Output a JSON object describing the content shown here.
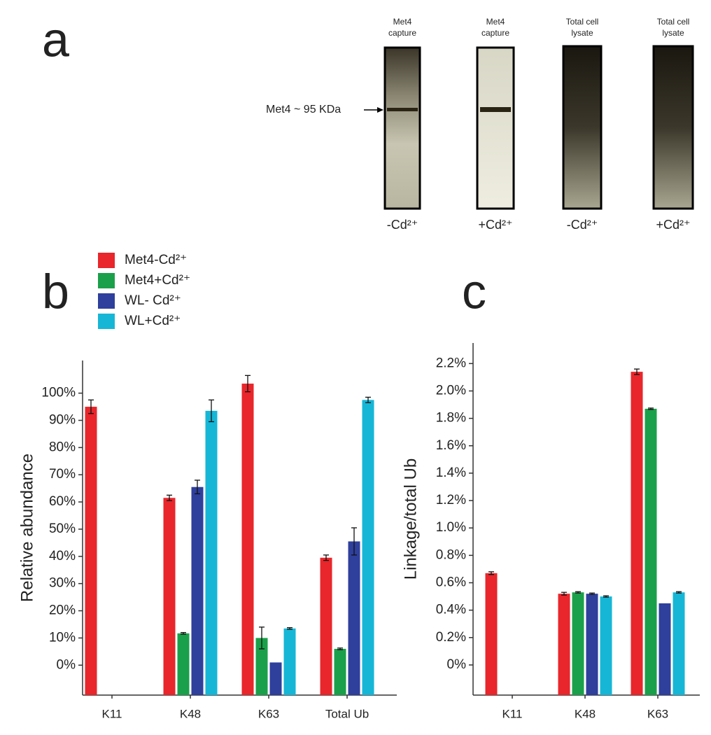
{
  "blot": {
    "panel": "a",
    "marker": "Met4 ~ 95 KDa",
    "lanes": [
      {
        "title": [
          "Met4",
          "capture"
        ],
        "condition": "-Cd²⁺"
      },
      {
        "title": [
          "Met4",
          "capture"
        ],
        "condition": "+Cd²⁺"
      },
      {
        "title": [
          "Total cell",
          "lysate"
        ],
        "condition": "-Cd²⁺"
      },
      {
        "title": [
          "Total cell",
          "lysate"
        ],
        "condition": "+Cd²⁺"
      }
    ]
  },
  "chart_data": [
    {
      "type": "bar",
      "panel": "b",
      "ylabel": "Relative abundance",
      "categories": [
        "K11",
        "K48",
        "K63",
        "Total Ub"
      ],
      "legend": "top-left",
      "series": [
        {
          "name": "Met4-Cd²⁺",
          "color": "#e8262b",
          "values": [
            95,
            61.5,
            103.5,
            39.5
          ],
          "errors": [
            2.5,
            1,
            3,
            1
          ]
        },
        {
          "name": "Met4+Cd²⁺",
          "color": "#1aa04a",
          "values": [
            null,
            11.7,
            10,
            6
          ],
          "errors": [
            null,
            0.3,
            4,
            0.3
          ]
        },
        {
          "name": "WL- Cd²⁺",
          "color": "#2e3f9c",
          "values": [
            null,
            65.5,
            1,
            45.5
          ],
          "errors": [
            null,
            2.5,
            null,
            5
          ]
        },
        {
          "name": "WL+Cd²⁺",
          "color": "#16b6d6",
          "values": [
            null,
            93.5,
            13.5,
            97.5
          ],
          "errors": [
            null,
            4,
            0.3,
            1
          ]
        }
      ],
      "ylim": [
        -11,
        112
      ],
      "yticks": [
        {
          "value": 0,
          "label": "0%"
        },
        {
          "value": 10,
          "label": "10%"
        },
        {
          "value": 20,
          "label": "20%"
        },
        {
          "value": 30,
          "label": "30%"
        },
        {
          "value": 40,
          "label": "40%"
        },
        {
          "value": 50,
          "label": "50%"
        },
        {
          "value": 60,
          "label": "60%"
        },
        {
          "value": 70,
          "label": "70%"
        },
        {
          "value": 80,
          "label": "80%"
        },
        {
          "value": 90,
          "label": "90%"
        },
        {
          "value": 100,
          "label": "100%"
        }
      ]
    },
    {
      "type": "bar",
      "panel": "c",
      "ylabel": "Linkage/total Ub",
      "categories": [
        "K11",
        "K48",
        "K63"
      ],
      "series": [
        {
          "color": "#e8262b",
          "values": [
            0.67,
            0.52,
            2.14
          ],
          "errors": [
            0.01,
            0.01,
            0.02
          ]
        },
        {
          "color": "#1aa04a",
          "values": [
            null,
            0.53,
            1.87
          ],
          "errors": [
            null,
            0.005,
            0.005
          ]
        },
        {
          "color": "#2e3f9c",
          "values": [
            null,
            0.52,
            0.45
          ],
          "errors": [
            null,
            0.005,
            null
          ]
        },
        {
          "color": "#16b6d6",
          "values": [
            null,
            0.5,
            0.53
          ],
          "errors": [
            null,
            0.005,
            0.005
          ]
        }
      ],
      "ylim": [
        -0.22,
        2.35
      ],
      "yticks": [
        {
          "value": 0,
          "label": "0%"
        },
        {
          "value": 0.2,
          "label": "0.2%"
        },
        {
          "value": 0.4,
          "label": "0.4%"
        },
        {
          "value": 0.6,
          "label": "0.6%"
        },
        {
          "value": 0.8,
          "label": "0.8%"
        },
        {
          "value": 1.0,
          "label": "1.0%"
        },
        {
          "value": 1.2,
          "label": "1.2%"
        },
        {
          "value": 1.4,
          "label": "1.4%"
        },
        {
          "value": 1.6,
          "label": "1.6%"
        },
        {
          "value": 1.8,
          "label": "1.8%"
        },
        {
          "value": 2.0,
          "label": "2.0%"
        },
        {
          "value": 2.2,
          "label": "2.2%"
        }
      ]
    }
  ]
}
